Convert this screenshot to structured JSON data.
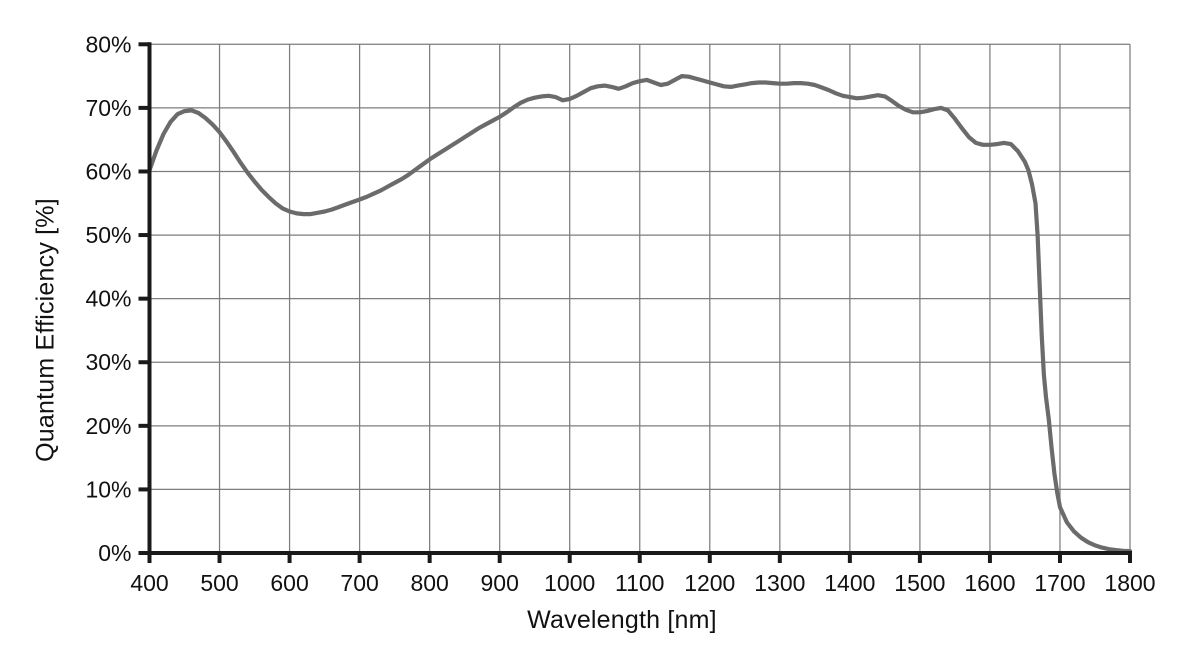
{
  "chart_data": {
    "type": "line",
    "title": "",
    "xlabel": "Wavelength [nm]",
    "ylabel": "Quantum Efficiency [%]",
    "xlim": [
      400,
      1800
    ],
    "ylim": [
      0,
      80
    ],
    "grid": true,
    "legend": false,
    "x_tick_values": [
      400,
      500,
      600,
      700,
      800,
      900,
      1000,
      1100,
      1200,
      1300,
      1400,
      1500,
      1600,
      1700,
      1800
    ],
    "x_tick_labels": [
      "400",
      "500",
      "600",
      "700",
      "800",
      "900",
      "1000",
      "1100",
      "1200",
      "1300",
      "1400",
      "1500",
      "1600",
      "1700",
      "1800"
    ],
    "y_tick_values": [
      0,
      10,
      20,
      30,
      40,
      50,
      60,
      70,
      80
    ],
    "y_tick_labels": [
      "0%",
      "10%",
      "20%",
      "30%",
      "40%",
      "50%",
      "60%",
      "70%",
      "80%"
    ],
    "colors": {
      "curve": "#6b6b6b",
      "gridline": "#7d7d7d",
      "axis": "#1a1a1a",
      "background": "#ffffff",
      "text": "#111111"
    },
    "series": [
      {
        "name": "Quantum Efficiency",
        "points": [
          [
            400,
            60.2
          ],
          [
            410,
            63.3
          ],
          [
            420,
            65.9
          ],
          [
            430,
            67.8
          ],
          [
            440,
            69.0
          ],
          [
            450,
            69.5
          ],
          [
            460,
            69.6
          ],
          [
            470,
            69.2
          ],
          [
            480,
            68.4
          ],
          [
            490,
            67.4
          ],
          [
            500,
            66.2
          ],
          [
            510,
            64.7
          ],
          [
            520,
            63.1
          ],
          [
            530,
            61.4
          ],
          [
            540,
            59.8
          ],
          [
            550,
            58.4
          ],
          [
            560,
            57.1
          ],
          [
            570,
            56.0
          ],
          [
            580,
            55.0
          ],
          [
            590,
            54.2
          ],
          [
            600,
            53.7
          ],
          [
            610,
            53.4
          ],
          [
            620,
            53.3
          ],
          [
            630,
            53.3
          ],
          [
            640,
            53.5
          ],
          [
            650,
            53.7
          ],
          [
            660,
            54.0
          ],
          [
            670,
            54.4
          ],
          [
            680,
            54.8
          ],
          [
            690,
            55.2
          ],
          [
            700,
            55.6
          ],
          [
            710,
            56.0
          ],
          [
            720,
            56.5
          ],
          [
            730,
            57.0
          ],
          [
            740,
            57.6
          ],
          [
            750,
            58.2
          ],
          [
            760,
            58.8
          ],
          [
            770,
            59.5
          ],
          [
            780,
            60.3
          ],
          [
            790,
            61.1
          ],
          [
            800,
            61.9
          ],
          [
            810,
            62.6
          ],
          [
            820,
            63.3
          ],
          [
            830,
            64.0
          ],
          [
            840,
            64.7
          ],
          [
            850,
            65.4
          ],
          [
            860,
            66.1
          ],
          [
            870,
            66.8
          ],
          [
            880,
            67.4
          ],
          [
            890,
            68.0
          ],
          [
            900,
            68.6
          ],
          [
            910,
            69.3
          ],
          [
            920,
            70.1
          ],
          [
            930,
            70.8
          ],
          [
            940,
            71.3
          ],
          [
            950,
            71.6
          ],
          [
            960,
            71.8
          ],
          [
            970,
            71.9
          ],
          [
            980,
            71.7
          ],
          [
            990,
            71.2
          ],
          [
            1000,
            71.4
          ],
          [
            1010,
            71.9
          ],
          [
            1020,
            72.5
          ],
          [
            1030,
            73.1
          ],
          [
            1040,
            73.4
          ],
          [
            1050,
            73.5
          ],
          [
            1060,
            73.3
          ],
          [
            1070,
            73.0
          ],
          [
            1080,
            73.4
          ],
          [
            1090,
            73.9
          ],
          [
            1100,
            74.2
          ],
          [
            1110,
            74.4
          ],
          [
            1120,
            74.0
          ],
          [
            1130,
            73.6
          ],
          [
            1140,
            73.8
          ],
          [
            1150,
            74.4
          ],
          [
            1160,
            75.0
          ],
          [
            1170,
            74.9
          ],
          [
            1180,
            74.6
          ],
          [
            1190,
            74.3
          ],
          [
            1200,
            74.0
          ],
          [
            1210,
            73.7
          ],
          [
            1220,
            73.4
          ],
          [
            1230,
            73.3
          ],
          [
            1240,
            73.5
          ],
          [
            1250,
            73.7
          ],
          [
            1260,
            73.9
          ],
          [
            1270,
            74.0
          ],
          [
            1280,
            74.0
          ],
          [
            1290,
            73.9
          ],
          [
            1300,
            73.8
          ],
          [
            1310,
            73.8
          ],
          [
            1320,
            73.9
          ],
          [
            1330,
            73.9
          ],
          [
            1340,
            73.8
          ],
          [
            1350,
            73.6
          ],
          [
            1360,
            73.2
          ],
          [
            1370,
            72.8
          ],
          [
            1380,
            72.3
          ],
          [
            1390,
            71.9
          ],
          [
            1400,
            71.7
          ],
          [
            1410,
            71.5
          ],
          [
            1420,
            71.6
          ],
          [
            1430,
            71.8
          ],
          [
            1440,
            72.0
          ],
          [
            1450,
            71.8
          ],
          [
            1460,
            71.1
          ],
          [
            1470,
            70.3
          ],
          [
            1480,
            69.7
          ],
          [
            1490,
            69.3
          ],
          [
            1500,
            69.3
          ],
          [
            1510,
            69.5
          ],
          [
            1520,
            69.8
          ],
          [
            1530,
            70.0
          ],
          [
            1540,
            69.6
          ],
          [
            1550,
            68.3
          ],
          [
            1560,
            66.8
          ],
          [
            1570,
            65.4
          ],
          [
            1580,
            64.5
          ],
          [
            1590,
            64.2
          ],
          [
            1600,
            64.2
          ],
          [
            1610,
            64.3
          ],
          [
            1620,
            64.5
          ],
          [
            1630,
            64.3
          ],
          [
            1640,
            63.2
          ],
          [
            1650,
            61.5
          ],
          [
            1655,
            60.2
          ],
          [
            1660,
            58.0
          ],
          [
            1665,
            55.0
          ],
          [
            1668,
            50.0
          ],
          [
            1671,
            42.0
          ],
          [
            1674,
            34.0
          ],
          [
            1677,
            28.0
          ],
          [
            1680,
            24.5
          ],
          [
            1684,
            21.0
          ],
          [
            1688,
            16.5
          ],
          [
            1692,
            12.5
          ],
          [
            1696,
            9.5
          ],
          [
            1700,
            7.2
          ],
          [
            1710,
            4.8
          ],
          [
            1720,
            3.4
          ],
          [
            1730,
            2.4
          ],
          [
            1740,
            1.7
          ],
          [
            1750,
            1.2
          ],
          [
            1760,
            0.85
          ],
          [
            1770,
            0.6
          ],
          [
            1780,
            0.45
          ],
          [
            1790,
            0.35
          ],
          [
            1800,
            0.3
          ]
        ]
      }
    ]
  }
}
